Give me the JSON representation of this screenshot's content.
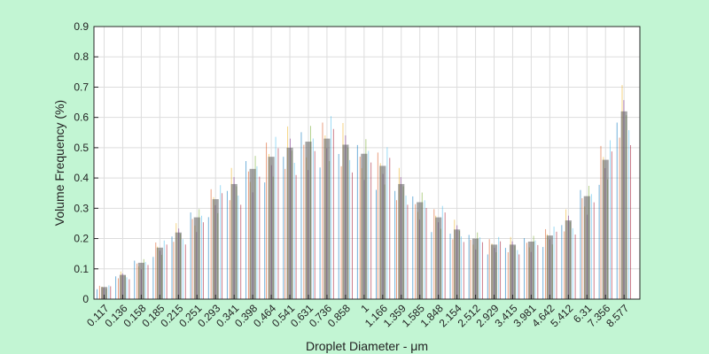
{
  "chart_data": {
    "type": "bar",
    "xlabel": "Droplet Diameter - μm",
    "ylabel": "Volume Frequency (%)",
    "ylim": [
      0,
      0.9
    ],
    "yticks": [
      "0",
      "0.1",
      "0.2",
      "0.3",
      "0.4",
      "0.5",
      "0.6",
      "0.7",
      "0.8",
      "0.9"
    ],
    "categories": [
      "0.117",
      "0.136",
      "0.158",
      "0.185",
      "0.215",
      "0.251",
      "0.293",
      "0.341",
      "0.398",
      "0.464",
      "0.541",
      "0.631",
      "0.736",
      "0.858",
      "1",
      "1.166",
      "1.359",
      "1.585",
      "1.848",
      "2.154",
      "2.512",
      "2.929",
      "3.415",
      "3.981",
      "4.642",
      "5.412",
      "6.31",
      "7.356",
      "8.577"
    ],
    "grid": true,
    "series_colors": [
      "#0072BD",
      "#D95319",
      "#EDB120",
      "#7E2F8E",
      "#77AC30",
      "#4DBEEE",
      "#A2142F"
    ],
    "values": [
      0.04,
      0.08,
      0.12,
      0.17,
      0.22,
      0.27,
      0.33,
      0.38,
      0.43,
      0.47,
      0.5,
      0.52,
      0.53,
      0.51,
      0.48,
      0.44,
      0.38,
      0.32,
      0.27,
      0.23,
      0.2,
      0.18,
      0.18,
      0.19,
      0.21,
      0.26,
      0.34,
      0.46,
      0.62
    ]
  }
}
